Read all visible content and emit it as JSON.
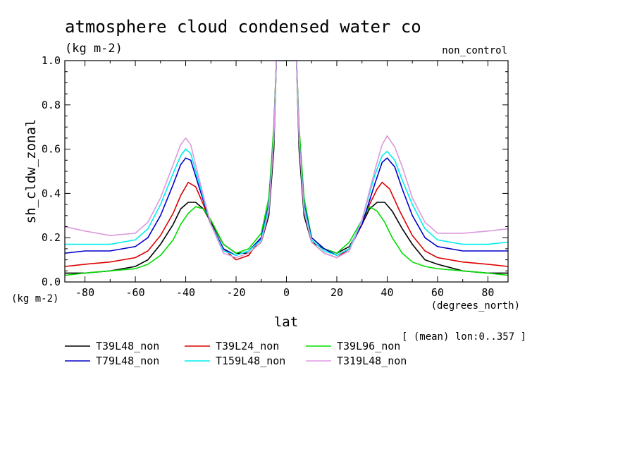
{
  "chart_data": {
    "type": "line",
    "title": "atmosphere cloud condensed water co",
    "subtitle": "(kg m-2)",
    "experiment": "non_control",
    "xlabel": "lat",
    "xunits": "(degrees_north)",
    "ylabel": "sh_cldw_zonal",
    "yunits": "(kg m-2)",
    "mean_note": "[ (mean) lon:0..357 ]",
    "xlim": [
      -88,
      88
    ],
    "ylim": [
      0,
      1
    ],
    "xticks": [
      -80,
      -60,
      -40,
      -20,
      0,
      20,
      40,
      60,
      80
    ],
    "xtick_labels": [
      "-80",
      "-60",
      "-40",
      "-20",
      "0",
      "20",
      "40",
      "60",
      "80"
    ],
    "yticks": [
      0,
      0.2,
      0.4,
      0.6,
      0.8,
      1.0
    ],
    "ytick_labels": [
      "0.0",
      "0.2",
      "0.4",
      "0.6",
      "0.8",
      "1.0"
    ],
    "legend_position": "below-left",
    "grid": false,
    "series": [
      {
        "name": "T39L48_non",
        "color": "#000000",
        "points": [
          [
            -88,
            0.04
          ],
          [
            -80,
            0.04
          ],
          [
            -70,
            0.05
          ],
          [
            -60,
            0.07
          ],
          [
            -55,
            0.1
          ],
          [
            -50,
            0.17
          ],
          [
            -45,
            0.26
          ],
          [
            -42,
            0.33
          ],
          [
            -39,
            0.36
          ],
          [
            -36,
            0.36
          ],
          [
            -33,
            0.33
          ],
          [
            -30,
            0.27
          ],
          [
            -25,
            0.17
          ],
          [
            -20,
            0.13
          ],
          [
            -15,
            0.13
          ],
          [
            -10,
            0.18
          ],
          [
            -7,
            0.3
          ],
          [
            -5,
            0.6
          ],
          [
            -4,
            1.0
          ],
          [
            4,
            1.0
          ],
          [
            5,
            0.6
          ],
          [
            7,
            0.3
          ],
          [
            10,
            0.18
          ],
          [
            15,
            0.15
          ],
          [
            20,
            0.13
          ],
          [
            25,
            0.16
          ],
          [
            30,
            0.26
          ],
          [
            33,
            0.33
          ],
          [
            36,
            0.36
          ],
          [
            39,
            0.36
          ],
          [
            42,
            0.32
          ],
          [
            46,
            0.24
          ],
          [
            50,
            0.17
          ],
          [
            55,
            0.1
          ],
          [
            60,
            0.08
          ],
          [
            70,
            0.05
          ],
          [
            80,
            0.04
          ],
          [
            88,
            0.04
          ]
        ]
      },
      {
        "name": "T39L24_non",
        "color": "#dd0000",
        "points": [
          [
            -88,
            0.07
          ],
          [
            -80,
            0.08
          ],
          [
            -70,
            0.09
          ],
          [
            -60,
            0.11
          ],
          [
            -55,
            0.14
          ],
          [
            -50,
            0.21
          ],
          [
            -45,
            0.31
          ],
          [
            -42,
            0.39
          ],
          [
            -39,
            0.45
          ],
          [
            -36,
            0.43
          ],
          [
            -33,
            0.35
          ],
          [
            -30,
            0.26
          ],
          [
            -25,
            0.15
          ],
          [
            -20,
            0.1
          ],
          [
            -15,
            0.12
          ],
          [
            -10,
            0.2
          ],
          [
            -7,
            0.35
          ],
          [
            -5,
            0.7
          ],
          [
            -4,
            1.0
          ],
          [
            4,
            1.0
          ],
          [
            5,
            0.7
          ],
          [
            7,
            0.35
          ],
          [
            10,
            0.18
          ],
          [
            15,
            0.13
          ],
          [
            20,
            0.11
          ],
          [
            25,
            0.15
          ],
          [
            30,
            0.26
          ],
          [
            33,
            0.35
          ],
          [
            36,
            0.42
          ],
          [
            38,
            0.45
          ],
          [
            41,
            0.42
          ],
          [
            45,
            0.32
          ],
          [
            50,
            0.21
          ],
          [
            55,
            0.14
          ],
          [
            60,
            0.11
          ],
          [
            70,
            0.09
          ],
          [
            80,
            0.08
          ],
          [
            88,
            0.07
          ]
        ]
      },
      {
        "name": "T39L96_non",
        "color": "#00dd00",
        "points": [
          [
            -88,
            0.03
          ],
          [
            -80,
            0.04
          ],
          [
            -70,
            0.05
          ],
          [
            -60,
            0.06
          ],
          [
            -55,
            0.08
          ],
          [
            -50,
            0.12
          ],
          [
            -45,
            0.19
          ],
          [
            -42,
            0.26
          ],
          [
            -39,
            0.31
          ],
          [
            -36,
            0.34
          ],
          [
            -33,
            0.33
          ],
          [
            -30,
            0.28
          ],
          [
            -25,
            0.17
          ],
          [
            -20,
            0.13
          ],
          [
            -15,
            0.15
          ],
          [
            -10,
            0.22
          ],
          [
            -7,
            0.38
          ],
          [
            -5,
            0.7
          ],
          [
            -4,
            1.0
          ],
          [
            4,
            1.0
          ],
          [
            5,
            0.7
          ],
          [
            7,
            0.38
          ],
          [
            10,
            0.2
          ],
          [
            15,
            0.15
          ],
          [
            20,
            0.13
          ],
          [
            25,
            0.18
          ],
          [
            30,
            0.28
          ],
          [
            33,
            0.34
          ],
          [
            36,
            0.32
          ],
          [
            39,
            0.27
          ],
          [
            42,
            0.2
          ],
          [
            46,
            0.13
          ],
          [
            50,
            0.09
          ],
          [
            55,
            0.07
          ],
          [
            60,
            0.06
          ],
          [
            70,
            0.05
          ],
          [
            80,
            0.04
          ],
          [
            88,
            0.03
          ]
        ]
      },
      {
        "name": "T79L48_non",
        "color": "#0000cc",
        "points": [
          [
            -88,
            0.13
          ],
          [
            -80,
            0.14
          ],
          [
            -70,
            0.14
          ],
          [
            -60,
            0.16
          ],
          [
            -55,
            0.2
          ],
          [
            -50,
            0.3
          ],
          [
            -45,
            0.44
          ],
          [
            -42,
            0.53
          ],
          [
            -40,
            0.56
          ],
          [
            -38,
            0.55
          ],
          [
            -35,
            0.44
          ],
          [
            -30,
            0.26
          ],
          [
            -25,
            0.15
          ],
          [
            -20,
            0.12
          ],
          [
            -15,
            0.14
          ],
          [
            -10,
            0.2
          ],
          [
            -7,
            0.35
          ],
          [
            -5,
            0.65
          ],
          [
            -4,
            1.0
          ],
          [
            4,
            1.0
          ],
          [
            5,
            0.65
          ],
          [
            7,
            0.35
          ],
          [
            10,
            0.2
          ],
          [
            15,
            0.15
          ],
          [
            20,
            0.12
          ],
          [
            25,
            0.15
          ],
          [
            30,
            0.26
          ],
          [
            35,
            0.44
          ],
          [
            38,
            0.54
          ],
          [
            40,
            0.56
          ],
          [
            43,
            0.52
          ],
          [
            46,
            0.42
          ],
          [
            50,
            0.3
          ],
          [
            55,
            0.2
          ],
          [
            60,
            0.16
          ],
          [
            70,
            0.14
          ],
          [
            80,
            0.14
          ],
          [
            88,
            0.14
          ]
        ]
      },
      {
        "name": "T159L48_non",
        "color": "#00eeee",
        "points": [
          [
            -88,
            0.17
          ],
          [
            -80,
            0.17
          ],
          [
            -70,
            0.17
          ],
          [
            -60,
            0.19
          ],
          [
            -55,
            0.24
          ],
          [
            -50,
            0.35
          ],
          [
            -45,
            0.49
          ],
          [
            -42,
            0.57
          ],
          [
            -40,
            0.6
          ],
          [
            -38,
            0.58
          ],
          [
            -35,
            0.46
          ],
          [
            -30,
            0.26
          ],
          [
            -25,
            0.14
          ],
          [
            -20,
            0.12
          ],
          [
            -15,
            0.14
          ],
          [
            -10,
            0.19
          ],
          [
            -7,
            0.34
          ],
          [
            -5,
            0.65
          ],
          [
            -4,
            1.0
          ],
          [
            4,
            1.0
          ],
          [
            5,
            0.65
          ],
          [
            7,
            0.34
          ],
          [
            10,
            0.19
          ],
          [
            15,
            0.14
          ],
          [
            20,
            0.12
          ],
          [
            25,
            0.15
          ],
          [
            30,
            0.28
          ],
          [
            35,
            0.48
          ],
          [
            38,
            0.57
          ],
          [
            40,
            0.59
          ],
          [
            43,
            0.55
          ],
          [
            46,
            0.46
          ],
          [
            50,
            0.35
          ],
          [
            55,
            0.24
          ],
          [
            60,
            0.19
          ],
          [
            70,
            0.17
          ],
          [
            80,
            0.17
          ],
          [
            88,
            0.18
          ]
        ]
      },
      {
        "name": "T319L48_non",
        "color": "#dd99dd",
        "points": [
          [
            -88,
            0.25
          ],
          [
            -80,
            0.23
          ],
          [
            -70,
            0.21
          ],
          [
            -60,
            0.22
          ],
          [
            -55,
            0.27
          ],
          [
            -50,
            0.38
          ],
          [
            -45,
            0.53
          ],
          [
            -42,
            0.62
          ],
          [
            -40,
            0.65
          ],
          [
            -38,
            0.62
          ],
          [
            -35,
            0.48
          ],
          [
            -30,
            0.26
          ],
          [
            -25,
            0.13
          ],
          [
            -20,
            0.11
          ],
          [
            -15,
            0.13
          ],
          [
            -10,
            0.18
          ],
          [
            -7,
            0.32
          ],
          [
            -5,
            0.65
          ],
          [
            -4,
            1.0
          ],
          [
            4,
            1.0
          ],
          [
            5,
            0.65
          ],
          [
            7,
            0.32
          ],
          [
            10,
            0.18
          ],
          [
            15,
            0.13
          ],
          [
            20,
            0.11
          ],
          [
            25,
            0.14
          ],
          [
            30,
            0.28
          ],
          [
            35,
            0.5
          ],
          [
            38,
            0.62
          ],
          [
            40,
            0.66
          ],
          [
            43,
            0.61
          ],
          [
            46,
            0.52
          ],
          [
            50,
            0.38
          ],
          [
            55,
            0.27
          ],
          [
            60,
            0.22
          ],
          [
            70,
            0.22
          ],
          [
            80,
            0.23
          ],
          [
            88,
            0.24
          ]
        ]
      }
    ]
  }
}
